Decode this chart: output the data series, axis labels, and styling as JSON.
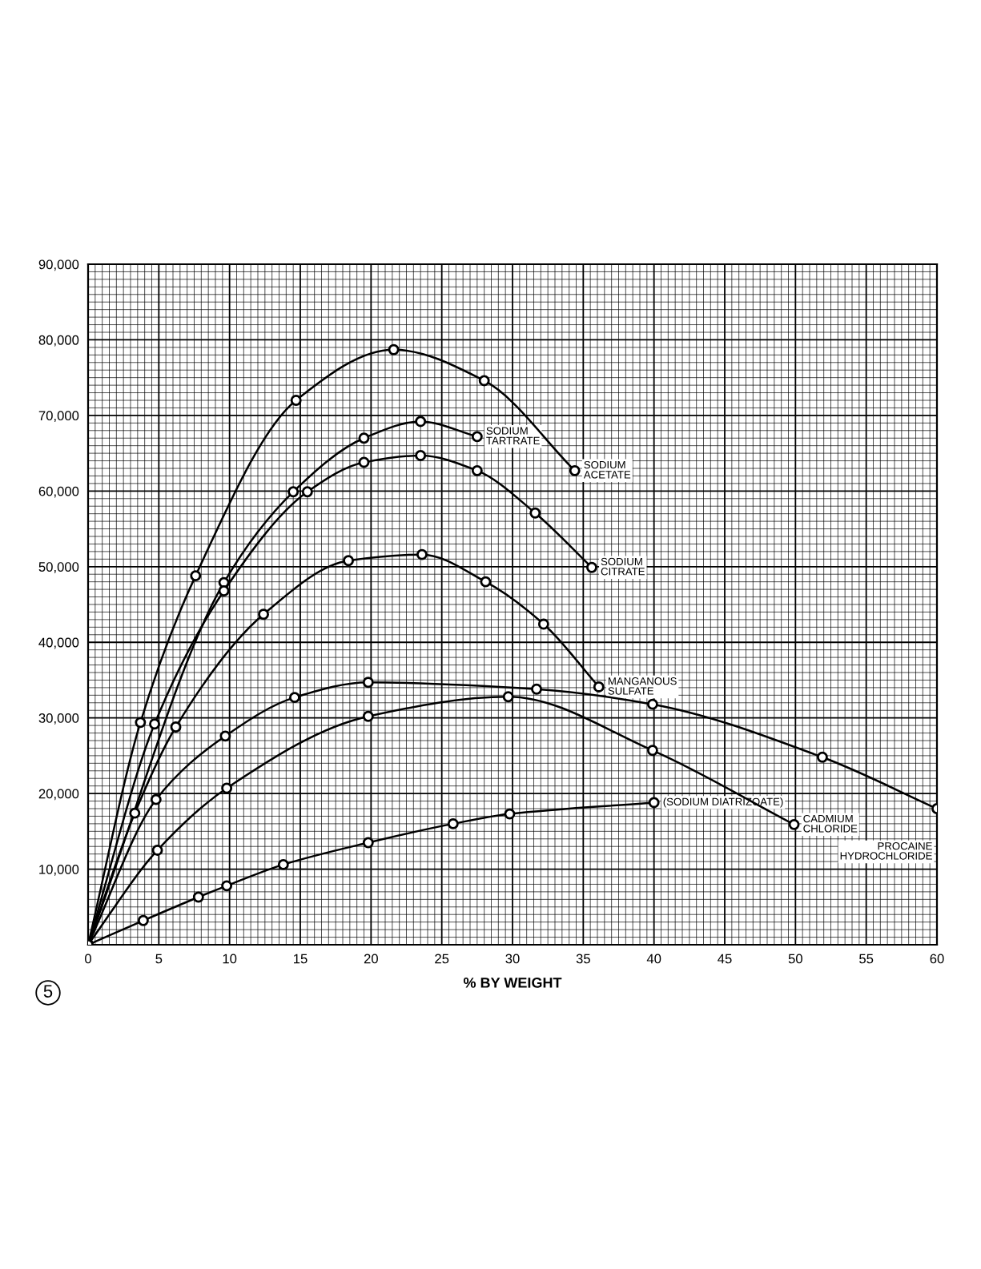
{
  "chart_data": {
    "type": "line",
    "xlabel": "% BY WEIGHT",
    "xlim": [
      0,
      60
    ],
    "xticks": [
      0,
      5,
      10,
      15,
      20,
      25,
      30,
      35,
      40,
      45,
      50,
      55,
      60
    ],
    "ylim": [
      0,
      90000
    ],
    "yticks": [
      {
        "value": 10000,
        "label": "10,000"
      },
      {
        "value": 20000,
        "label": "20,000"
      },
      {
        "value": 30000,
        "label": "30,000"
      },
      {
        "value": 40000,
        "label": "40,000"
      },
      {
        "value": 50000,
        "label": "50,000"
      },
      {
        "value": 60000,
        "label": "60,000"
      },
      {
        "value": 70000,
        "label": "70,000"
      },
      {
        "value": 80000,
        "label": "80,000"
      },
      {
        "value": 90000,
        "label": "90,000"
      }
    ],
    "grid": true,
    "marker": "circle",
    "line_style": "solid",
    "annotations": [
      "5"
    ],
    "series": [
      {
        "name": "SODIUM\nACETATE",
        "color": "#000000",
        "x": [
          0,
          3.7,
          7.6,
          14.7,
          21.6,
          28.0,
          34.4
        ],
        "values": [
          0,
          29400,
          48800,
          72000,
          78700,
          74600,
          62700
        ]
      },
      {
        "name": "SODIUM\nTARTRATE",
        "color": "#000000",
        "x": [
          0,
          9.6,
          14.5,
          19.5,
          23.5,
          27.5
        ],
        "values": [
          0,
          47900,
          59900,
          67000,
          69200,
          67200
        ]
      },
      {
        "name": "SODIUM\nCITRATE",
        "color": "#000000",
        "x": [
          0,
          4.7,
          9.6,
          15.5,
          19.5,
          23.5,
          27.5,
          31.6,
          35.6
        ],
        "values": [
          0,
          29200,
          46800,
          59900,
          63800,
          64700,
          62700,
          57100,
          49900
        ]
      },
      {
        "name": "MANGANOUS\nSULFATE",
        "color": "#000000",
        "x": [
          0,
          3.3,
          6.2,
          12.4,
          18.4,
          23.6,
          28.1,
          32.2,
          36.1
        ],
        "values": [
          0,
          17400,
          28800,
          43700,
          50800,
          51600,
          48000,
          42400,
          34100
        ]
      },
      {
        "name": "PROCAINE\nHYDROCHLORIDE",
        "color": "#000000",
        "x": [
          0,
          4.8,
          9.7,
          14.6,
          19.8,
          31.7,
          39.9,
          51.9,
          60.0
        ],
        "values": [
          0,
          19200,
          27600,
          32700,
          34700,
          33800,
          31800,
          24800,
          18000
        ]
      },
      {
        "name": "CADMIUM\nCHLORIDE",
        "color": "#000000",
        "x": [
          0,
          4.9,
          9.8,
          19.8,
          29.7,
          39.9,
          49.9
        ],
        "values": [
          0,
          12500,
          20700,
          30200,
          32800,
          25700,
          15900
        ]
      },
      {
        "name": "(SODIUM DIATRIZOATE)",
        "color": "#000000",
        "x": [
          0,
          3.9,
          7.8,
          9.8,
          13.8,
          19.8,
          25.8,
          29.8,
          40.0
        ],
        "values": [
          0,
          3200,
          6300,
          7800,
          10600,
          13500,
          16000,
          17300,
          18800
        ]
      }
    ]
  }
}
